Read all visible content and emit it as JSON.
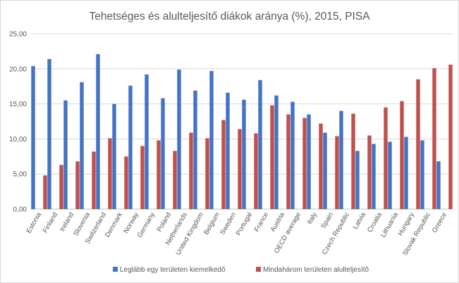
{
  "chart_data": {
    "type": "bar",
    "title": "Tehetséges és alulteljesítő diákok aránya (%), 2015, PISA",
    "xlabel": "",
    "ylabel": "",
    "ylim": [
      0,
      25
    ],
    "yticks": [
      "0,00",
      "5,00",
      "10,00",
      "15,00",
      "20,00",
      "25,00"
    ],
    "grid": true,
    "legend_position": "bottom",
    "categories": [
      "Estonia",
      "Finland",
      "Ireland",
      "Slovenia",
      "Switzerland",
      "Denmark",
      "Norway",
      "Germany",
      "Poland",
      "Netherlands",
      "United Kingdom",
      "Belgium",
      "Sweden",
      "Portugal",
      "France",
      "Austria",
      "OECD average",
      "Italy",
      "Spain",
      "Czech Republic",
      "Latvia",
      "Croatia",
      "Lithuania",
      "Hungary",
      "Slovak Republic",
      "Greece"
    ],
    "series": [
      {
        "name": "Leglább egy területen kiemelkedő",
        "color": "#4472c4",
        "values": [
          20.4,
          21.4,
          15.5,
          18.1,
          22.1,
          15.0,
          17.6,
          19.2,
          15.8,
          19.9,
          16.9,
          19.7,
          16.6,
          15.6,
          18.4,
          16.2,
          15.3,
          13.5,
          10.9,
          14.0,
          8.3,
          9.3,
          9.6,
          10.3,
          9.8,
          6.8
        ]
      },
      {
        "name": "Mindahárom területen alulteljesítő",
        "color": "#c0504d",
        "values": [
          4.8,
          6.3,
          6.8,
          8.2,
          10.1,
          7.5,
          9.0,
          9.8,
          8.3,
          10.9,
          10.1,
          12.7,
          11.4,
          10.8,
          14.8,
          13.5,
          13.0,
          12.2,
          10.4,
          13.6,
          10.5,
          14.5,
          15.4,
          18.5,
          20.1,
          20.6
        ]
      }
    ]
  }
}
